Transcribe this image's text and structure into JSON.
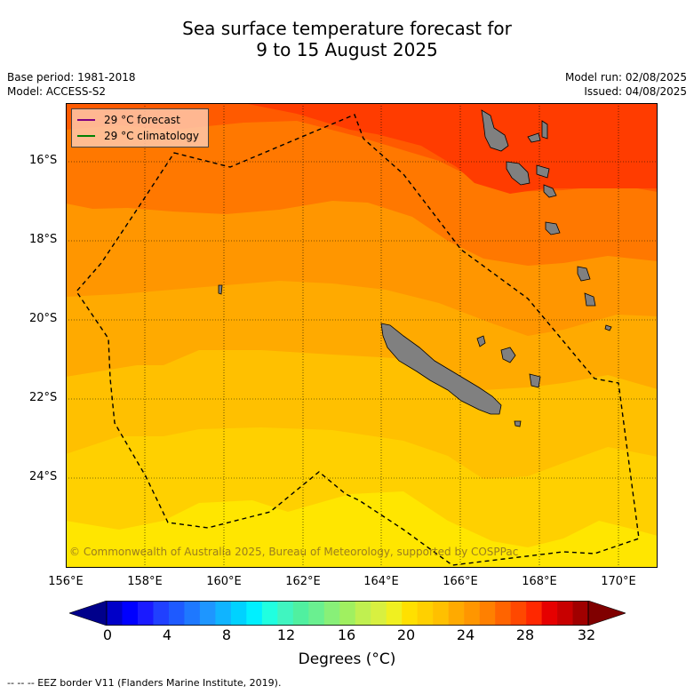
{
  "title": {
    "line1": "Sea surface temperature forecast for",
    "line2": "9 to 15 August 2025"
  },
  "meta": {
    "base_period": "Base period: 1981-2018",
    "model": "Model: ACCESS-S2",
    "model_run": "Model run: 02/08/2025",
    "issued": "Issued: 04/08/2025"
  },
  "axes": {
    "lat_ticks": [
      "16°S",
      "18°S",
      "20°S",
      "22°S",
      "24°S"
    ],
    "lon_ticks": [
      "156°E",
      "158°E",
      "160°E",
      "162°E",
      "164°E",
      "166°E",
      "168°E",
      "170°E"
    ]
  },
  "legend": {
    "forecast_label": "29 °C  forecast",
    "forecast_color": "#800080",
    "climatology_label": "29 °C  climatology",
    "climatology_color": "#008000"
  },
  "copyright": "© Commonwealth of Australia 2025, Bureau of Meteorology, supported by COSPPac",
  "colorbar": {
    "ticks": [
      "0",
      "4",
      "8",
      "12",
      "16",
      "20",
      "24",
      "28",
      "32"
    ],
    "label": "Degrees (°C)",
    "colors": [
      "#00008b",
      "#0000c8",
      "#0000ff",
      "#1a1aff",
      "#2040ff",
      "#1e5aff",
      "#1e78ff",
      "#1e96ff",
      "#10b4ff",
      "#00d2ff",
      "#00f0ff",
      "#20ffe0",
      "#40f5c0",
      "#50f0a0",
      "#6af090",
      "#88f078",
      "#a0f060",
      "#c0f050",
      "#d8f040",
      "#f0f020",
      "#ffe000",
      "#ffd000",
      "#ffc000",
      "#ffaa00",
      "#ff9600",
      "#ff8000",
      "#ff6400",
      "#ff4800",
      "#ff2800",
      "#e60000",
      "#c80000",
      "#a00000",
      "#800000"
    ]
  },
  "footnote": "--  --  -- EEZ border V11 (Flanders Marine Institute, 2019)."
}
